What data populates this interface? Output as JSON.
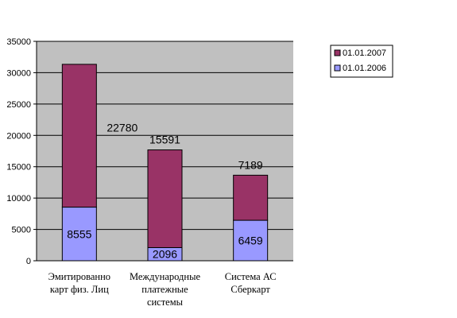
{
  "chart_data": {
    "type": "bar",
    "stacked": true,
    "categories": [
      [
        "Эмитированно",
        "карт физ. Лиц"
      ],
      [
        "Международные",
        "платежные",
        "системы"
      ],
      [
        "Система АС",
        "Сберкарт"
      ]
    ],
    "series": [
      {
        "name": "01.01.2006",
        "values": [
          8555,
          2096,
          6459
        ],
        "color": "#9999FF"
      },
      {
        "name": "01.01.2007",
        "values": [
          22780,
          15591,
          7189
        ],
        "color": "#993366"
      }
    ],
    "ylim": [
      0,
      35000
    ],
    "yticks": [
      0,
      5000,
      10000,
      15000,
      20000,
      25000,
      30000,
      35000
    ],
    "grid": true,
    "plot_background": "#C0C0C0",
    "legend_position": "top-right",
    "title": "",
    "xlabel": "",
    "ylabel": ""
  }
}
